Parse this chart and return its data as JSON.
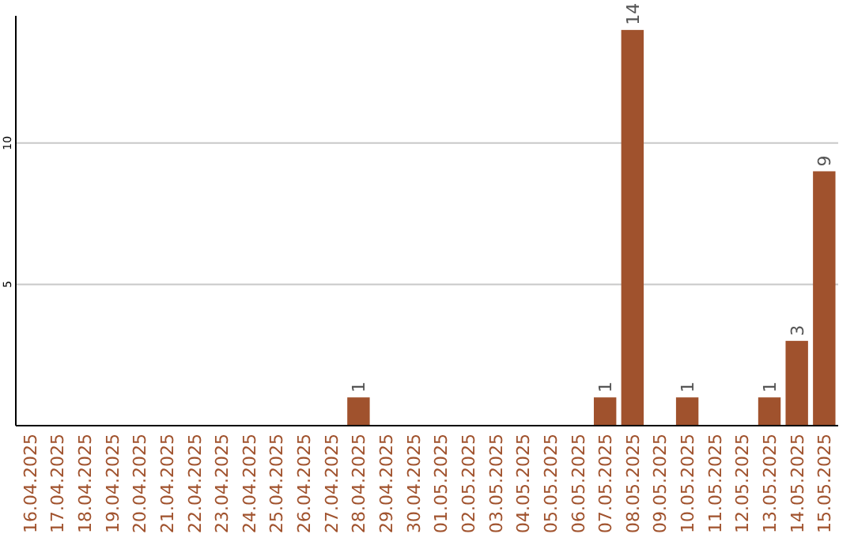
{
  "chart_data": {
    "type": "bar",
    "categories": [
      "16.04.2025",
      "17.04.2025",
      "18.04.2025",
      "19.04.2025",
      "20.04.2025",
      "21.04.2025",
      "22.04.2025",
      "23.04.2025",
      "24.04.2025",
      "25.04.2025",
      "26.04.2025",
      "27.04.2025",
      "28.04.2025",
      "29.04.2025",
      "30.04.2025",
      "01.05.2025",
      "02.05.2025",
      "03.05.2025",
      "04.05.2025",
      "05.05.2025",
      "06.05.2025",
      "07.05.2025",
      "08.05.2025",
      "09.05.2025",
      "10.05.2025",
      "11.05.2025",
      "12.05.2025",
      "13.05.2025",
      "14.05.2025",
      "15.05.2025"
    ],
    "values": [
      0,
      0,
      0,
      0,
      0,
      0,
      0,
      0,
      0,
      0,
      0,
      0,
      1,
      0,
      0,
      0,
      0,
      0,
      0,
      0,
      0,
      1,
      14,
      0,
      1,
      0,
      0,
      1,
      3,
      9
    ],
    "value_labels": [
      null,
      null,
      null,
      null,
      null,
      null,
      null,
      null,
      null,
      null,
      null,
      null,
      "1",
      null,
      null,
      null,
      null,
      null,
      null,
      null,
      null,
      "1",
      "14",
      null,
      "1",
      null,
      null,
      "1",
      "3",
      "9"
    ],
    "color": "#a0522d",
    "ylim": [
      0,
      14.5
    ],
    "yticks": [
      5,
      10
    ],
    "grid": "y"
  }
}
